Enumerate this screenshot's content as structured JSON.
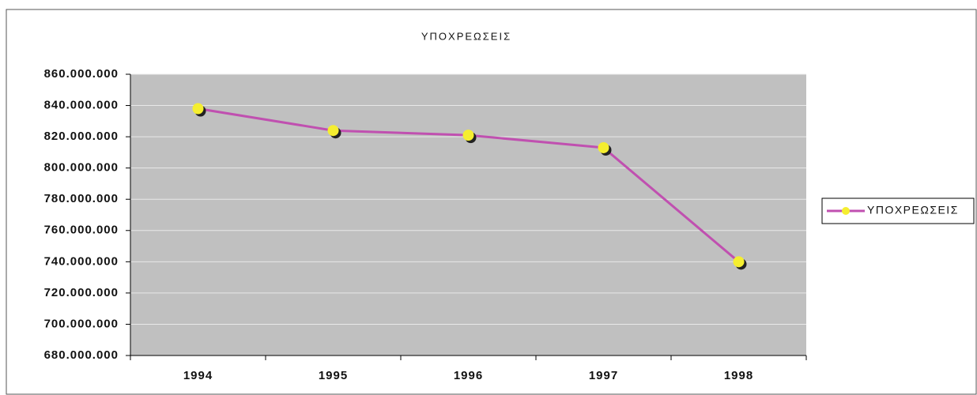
{
  "chart_data": {
    "type": "line",
    "title": "ΥΠΟΧΡΕΩΣΕΙΣ",
    "categories": [
      "1994",
      "1995",
      "1996",
      "1997",
      "1998"
    ],
    "series": [
      {
        "name": "ΥΠΟΧΡΕΩΣΕΙΣ",
        "color": "#c050b0",
        "marker_color": "#f5ee30",
        "values": [
          838000000,
          824000000,
          821000000,
          813000000,
          740000000
        ]
      }
    ],
    "ylim": [
      680000000,
      860000000
    ],
    "yticks": [
      {
        "value": 680000000,
        "label": "680.000.000"
      },
      {
        "value": 700000000,
        "label": "700.000.000"
      },
      {
        "value": 720000000,
        "label": "720.000.000"
      },
      {
        "value": 740000000,
        "label": "740.000.000"
      },
      {
        "value": 760000000,
        "label": "760.000.000"
      },
      {
        "value": 780000000,
        "label": "780.000.000"
      },
      {
        "value": 800000000,
        "label": "800.000.000"
      },
      {
        "value": 820000000,
        "label": "820.000.000"
      },
      {
        "value": 840000000,
        "label": "840.000.000"
      },
      {
        "value": 860000000,
        "label": "860.000.000"
      }
    ],
    "grid": true,
    "plot_background": "#c0c0c0",
    "legend": "right"
  }
}
